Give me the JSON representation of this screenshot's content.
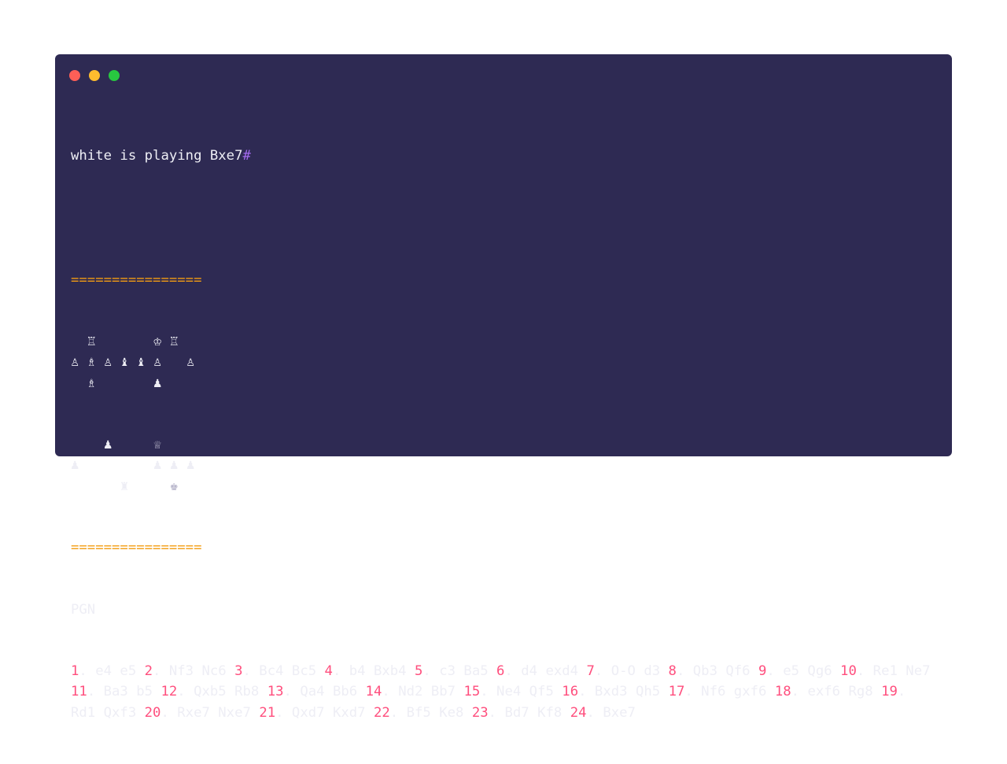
{
  "window": {
    "controls": {
      "close_color": "#ff5f57",
      "minimize_color": "#febc2e",
      "maximize_color": "#28c840"
    }
  },
  "status": {
    "text": "white is playing Bxe7",
    "suffix": "#"
  },
  "board": {
    "separator": "================",
    "rows": [
      [
        "",
        "♖",
        "",
        "",
        "",
        "♔",
        "♖",
        ""
      ],
      [
        "♙",
        "♗",
        "♙",
        "♝",
        "♝",
        "♙",
        "",
        "♙"
      ],
      [
        "",
        "♗",
        "",
        "",
        "",
        "♟",
        "",
        ""
      ],
      [
        "",
        "",
        "",
        "",
        "",
        "",
        "",
        ""
      ],
      [
        "",
        "",
        "",
        "",
        "",
        "",
        "",
        ""
      ],
      [
        "",
        "",
        "♟",
        "",
        "",
        "♕",
        "",
        ""
      ],
      [
        "♟",
        "",
        "",
        "",
        "",
        "♟",
        "♟",
        "♟"
      ],
      [
        "",
        "",
        "",
        "♜",
        "",
        "",
        "♚",
        ""
      ]
    ]
  },
  "pgn": {
    "label": "PGN",
    "moves": [
      [
        "1",
        "e4",
        "e5"
      ],
      [
        "2",
        "Nf3",
        "Nc6"
      ],
      [
        "3",
        "Bc4",
        "Bc5"
      ],
      [
        "4",
        "b4",
        "Bxb4"
      ],
      [
        "5",
        "c3",
        "Ba5"
      ],
      [
        "6",
        "d4",
        "exd4"
      ],
      [
        "7",
        "O-O",
        "d3"
      ],
      [
        "8",
        "Qb3",
        "Qf6"
      ],
      [
        "9",
        "e5",
        "Qg6"
      ],
      [
        "10",
        "Re1",
        "Ne7"
      ],
      [
        "11",
        "Ba3",
        "b5"
      ],
      [
        "12",
        "Qxb5",
        "Rb8"
      ],
      [
        "13",
        "Qa4",
        "Bb6"
      ],
      [
        "14",
        "Nd2",
        "Bb7"
      ],
      [
        "15",
        "Ne4",
        "Qf5"
      ],
      [
        "16",
        "Bxd3",
        "Qh5"
      ],
      [
        "17",
        "Nf6",
        "gxf6"
      ],
      [
        "18",
        "exf6",
        "Rg8"
      ],
      [
        "19",
        "Rd1",
        "Qxf3"
      ],
      [
        "20",
        "Rxe7",
        "Nxe7"
      ],
      [
        "21",
        "Qxd7",
        "Kxd7"
      ],
      [
        "22",
        "Bf5",
        "Ke8"
      ],
      [
        "23",
        "Bd7",
        "Kf8"
      ],
      [
        "24",
        "Bxe7",
        ""
      ]
    ]
  }
}
